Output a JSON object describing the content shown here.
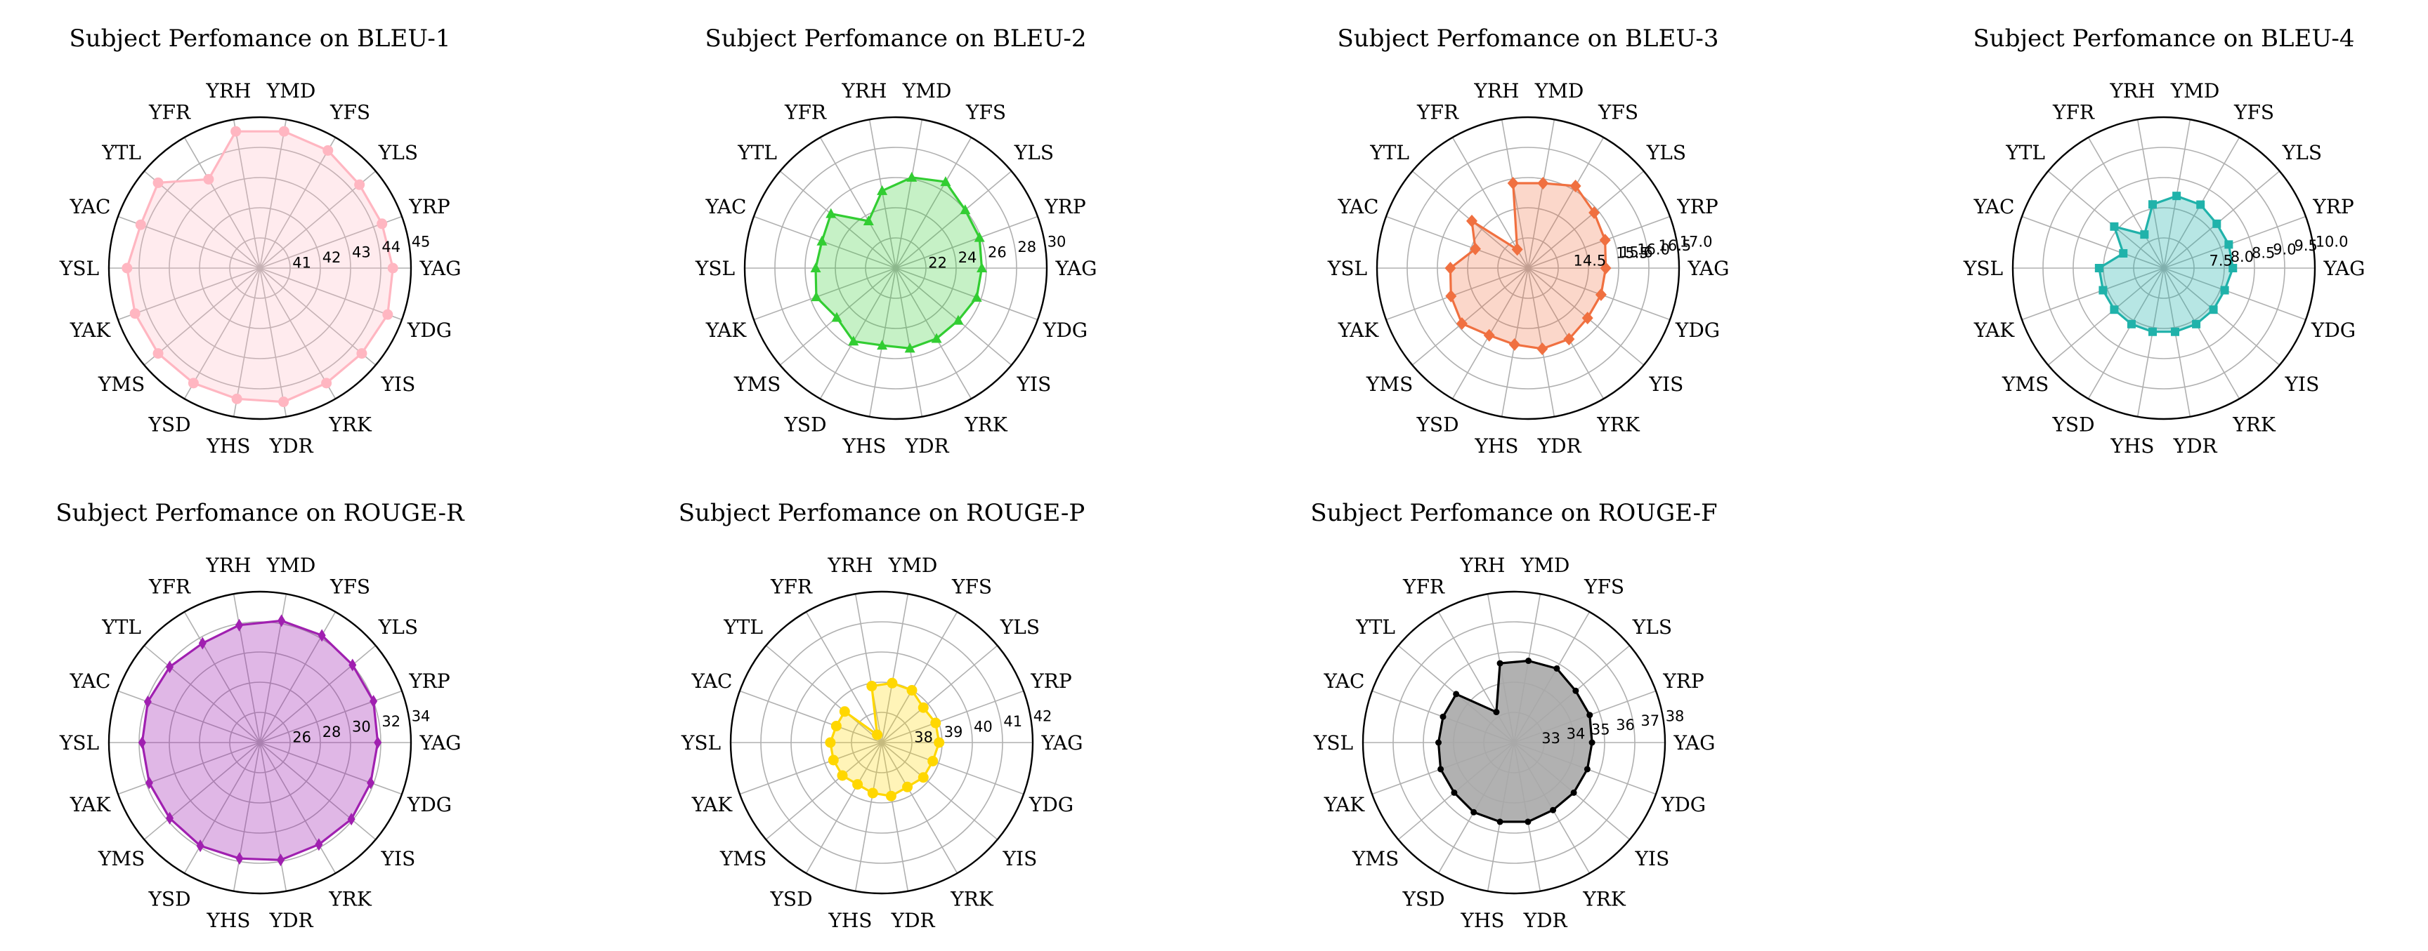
{
  "chart_data": [
    {
      "type": "radar",
      "title": "Subject Perfomance on BLEU-1",
      "color": "#ffb6c1",
      "fill_opacity": 0.28,
      "marker": "circle",
      "categories": [
        "YAG",
        "YRP",
        "YLS",
        "YFS",
        "YMD",
        "YRH",
        "YFR",
        "YTL",
        "YAC",
        "YSL",
        "YAK",
        "YMS",
        "YSD",
        "YHS",
        "YDR",
        "YRK",
        "YIS",
        "YDG"
      ],
      "rmin": 40,
      "rmax": 45,
      "ticks": [
        41,
        42,
        43,
        44,
        45
      ],
      "tick_labels": [
        "41",
        "42",
        "43",
        "44",
        "45"
      ],
      "values": [
        44.4,
        44.3,
        44.3,
        44.5,
        44.6,
        44.6,
        43.4,
        44.4,
        44.2,
        44.4,
        44.4,
        44.4,
        44.4,
        44.4,
        44.5,
        44.4,
        44.4,
        44.5
      ]
    },
    {
      "type": "radar",
      "title": "Subject Perfomance on BLEU-2",
      "color": "#32cd32",
      "fill_opacity": 0.28,
      "marker": "triangle",
      "categories": [
        "YAG",
        "YRP",
        "YLS",
        "YFS",
        "YMD",
        "YRH",
        "YFR",
        "YTL",
        "YAC",
        "YSL",
        "YAK",
        "YMS",
        "YSD",
        "YHS",
        "YDR",
        "YRK",
        "YIS",
        "YDG"
      ],
      "rmin": 20,
      "rmax": 30,
      "ticks": [
        22,
        24,
        26,
        28,
        30
      ],
      "tick_labels": [
        "22",
        "24",
        "26",
        "28",
        "30"
      ],
      "values": [
        25.7,
        25.9,
        26.0,
        26.6,
        26.1,
        25.2,
        23.6,
        25.6,
        25.2,
        25.3,
        25.6,
        25.1,
        25.6,
        25.2,
        25.4,
        25.4,
        25.4,
        25.7
      ]
    },
    {
      "type": "radar",
      "title": "Subject Perfomance on BLEU-3",
      "color": "#f07040",
      "fill_opacity": 0.28,
      "marker": "diamond",
      "categories": [
        "YAG",
        "YRP",
        "YLS",
        "YFS",
        "YMD",
        "YRH",
        "YFR",
        "YTL",
        "YAC",
        "YSL",
        "YAK",
        "YMS",
        "YSD",
        "YHS",
        "YDR",
        "YRK",
        "YIS",
        "YDG"
      ],
      "rmin": 13.5,
      "rmax": 17.0,
      "ticks": [
        14.5,
        15.5,
        15.6,
        16.0,
        16.5,
        17.0
      ],
      "tick_labels": [
        "14.5",
        "15.5",
        "15.6",
        "16.0",
        "16.5",
        "17.0"
      ],
      "values": [
        15.3,
        15.4,
        15.5,
        15.7,
        15.5,
        15.5,
        14.0,
        15.2,
        14.8,
        15.3,
        15.4,
        15.5,
        15.3,
        15.3,
        15.4,
        15.4,
        15.3,
        15.3
      ]
    },
    {
      "type": "radar",
      "title": "Subject Perfomance on BLEU-4",
      "color": "#20b2aa",
      "fill_opacity": 0.32,
      "marker": "square",
      "categories": [
        "YAG",
        "YRP",
        "YLS",
        "YFS",
        "YMD",
        "YRH",
        "YFR",
        "YTL",
        "YAC",
        "YSL",
        "YAK",
        "YMS",
        "YSD",
        "YHS",
        "YDR",
        "YRK",
        "YIS",
        "YDG"
      ],
      "rmin": 6.5,
      "rmax": 10.0,
      "ticks": [
        7.5,
        8.0,
        8.5,
        9.0,
        9.5,
        10.0
      ],
      "tick_labels": [
        "7.5",
        "8.0",
        "8.5",
        "9.0",
        "9.5",
        "10.0"
      ],
      "values": [
        8.1,
        8.1,
        8.1,
        8.2,
        8.2,
        8.0,
        7.4,
        8.0,
        7.5,
        8.0,
        8.0,
        8.0,
        8.0,
        8.0,
        8.0,
        8.0,
        8.0,
        8.0
      ]
    },
    {
      "type": "radar",
      "title": "Subject Perfomance on ROUGE-R",
      "color": "#a020b0",
      "fill_opacity": 0.32,
      "marker": "diamond-thin",
      "categories": [
        "YAG",
        "YRP",
        "YLS",
        "YFS",
        "YMD",
        "YRH",
        "YFR",
        "YTL",
        "YAC",
        "YSL",
        "YAK",
        "YMS",
        "YSD",
        "YHS",
        "YDR",
        "YRK",
        "YIS",
        "YDG"
      ],
      "rmin": 24,
      "rmax": 34,
      "ticks": [
        26,
        28,
        30,
        32,
        34
      ],
      "tick_labels": [
        "26",
        "28",
        "30",
        "32",
        "34"
      ],
      "values": [
        31.8,
        32.0,
        32.0,
        32.2,
        32.2,
        31.9,
        31.6,
        31.8,
        31.9,
        31.8,
        31.8,
        31.8,
        31.9,
        31.8,
        31.9,
        31.8,
        31.9,
        31.8
      ]
    },
    {
      "type": "radar",
      "title": "Subject Perfomance on ROUGE-P",
      "color": "#ffd700",
      "fill_opacity": 0.28,
      "marker": "circle",
      "categories": [
        "YAG",
        "YRP",
        "YLS",
        "YFS",
        "YMD",
        "YRH",
        "YFR",
        "YTL",
        "YAC",
        "YSL",
        "YAK",
        "YMS",
        "YSD",
        "YHS",
        "YDR",
        "YRK",
        "YIS",
        "YDG"
      ],
      "rmin": 37,
      "rmax": 42,
      "ticks": [
        38,
        39,
        40,
        41,
        42
      ],
      "tick_labels": [
        "38",
        "39",
        "40",
        "41",
        "42"
      ],
      "values": [
        38.9,
        38.9,
        38.8,
        39.0,
        39.0,
        38.9,
        37.3,
        38.6,
        38.6,
        38.7,
        38.7,
        38.7,
        38.6,
        38.7,
        38.8,
        38.7,
        38.8,
        38.8
      ]
    },
    {
      "type": "radar",
      "title": "Subject Perfomance on ROUGE-F",
      "color": "#000000",
      "fill": "#a8a8a8",
      "fill_opacity": 0.9,
      "marker": "dot",
      "categories": [
        "YAG",
        "YRP",
        "YLS",
        "YFS",
        "YMD",
        "YRH",
        "YFR",
        "YTL",
        "YAC",
        "YSL",
        "YAK",
        "YMS",
        "YSD",
        "YHS",
        "YDR",
        "YRK",
        "YIS",
        "YDG"
      ],
      "rmin": 32,
      "rmax": 38,
      "ticks": [
        33,
        34,
        35,
        36,
        37,
        38
      ],
      "tick_labels": [
        "33",
        "34",
        "35",
        "36",
        "37",
        "38"
      ],
      "values": [
        35.1,
        35.2,
        35.2,
        35.4,
        35.3,
        35.2,
        33.4,
        35.0,
        35.0,
        35.0,
        35.1,
        35.1,
        35.2,
        35.2,
        35.2,
        35.1,
        35.1,
        35.1
      ]
    }
  ]
}
